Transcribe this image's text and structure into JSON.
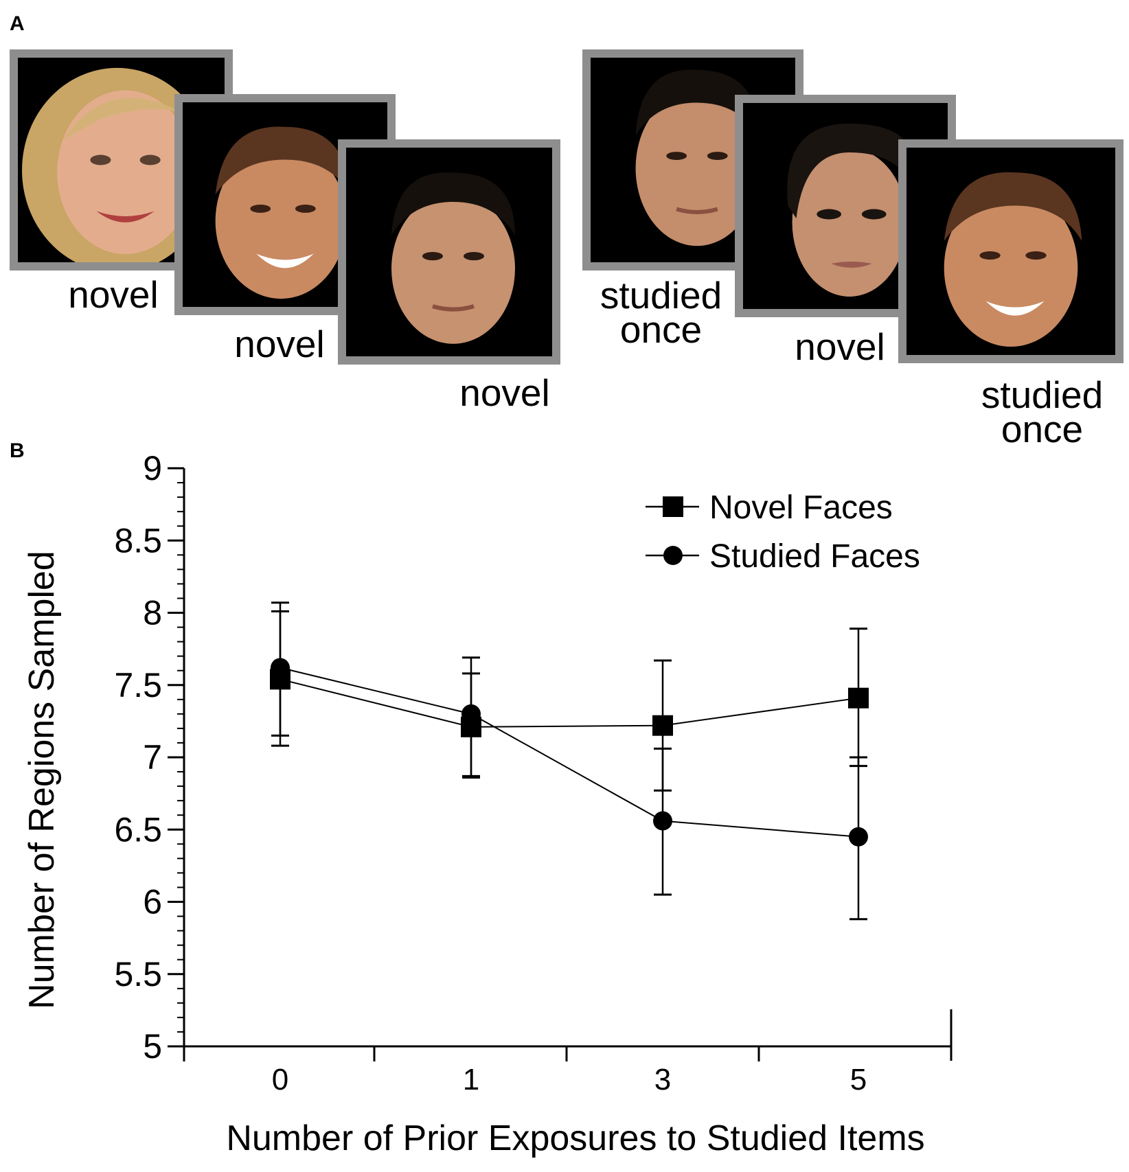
{
  "panel_a": {
    "label": "A",
    "left_sequence": [
      {
        "caption": "novel",
        "face": "blonde-woman-smiling"
      },
      {
        "caption": "novel",
        "face": "man-brown-hair-smiling"
      },
      {
        "caption": "novel",
        "face": "man-dark-hair-neutral"
      }
    ],
    "right_sequence": [
      {
        "caption_line1": "studied",
        "caption_line2": "once",
        "face": "man-dark-hair-neutral"
      },
      {
        "caption": "novel",
        "face": "woman-dark-hair-neutral"
      },
      {
        "caption_line1": "studied",
        "caption_line2": "once",
        "face": "man-brown-hair-smiling"
      }
    ]
  },
  "panel_b": {
    "label": "B"
  },
  "chart_data": {
    "type": "line",
    "xlabel": "Number of Prior Exposures to Studied Items",
    "ylabel": "Number of Regions Sampled",
    "categories": [
      "0",
      "1",
      "3",
      "5"
    ],
    "ylim": [
      5,
      9
    ],
    "yticks": [
      "5",
      "5.5",
      "6",
      "6.5",
      "7",
      "7.5",
      "8",
      "8.5",
      "9"
    ],
    "legend_position": "top-right",
    "grid": false,
    "series": [
      {
        "name": "Novel Faces",
        "marker": "square",
        "values": [
          7.54,
          7.21,
          7.22,
          7.41
        ],
        "err_low": [
          7.15,
          6.87,
          6.77,
          6.94
        ],
        "err_high": [
          8.01,
          7.58,
          7.67,
          7.89
        ]
      },
      {
        "name": "Studied Faces",
        "marker": "circle",
        "values": [
          7.62,
          7.3,
          6.56,
          6.45
        ],
        "err_low": [
          7.08,
          6.86,
          6.05,
          5.88
        ],
        "err_high": [
          8.07,
          7.69,
          7.06,
          7.0
        ]
      }
    ]
  }
}
